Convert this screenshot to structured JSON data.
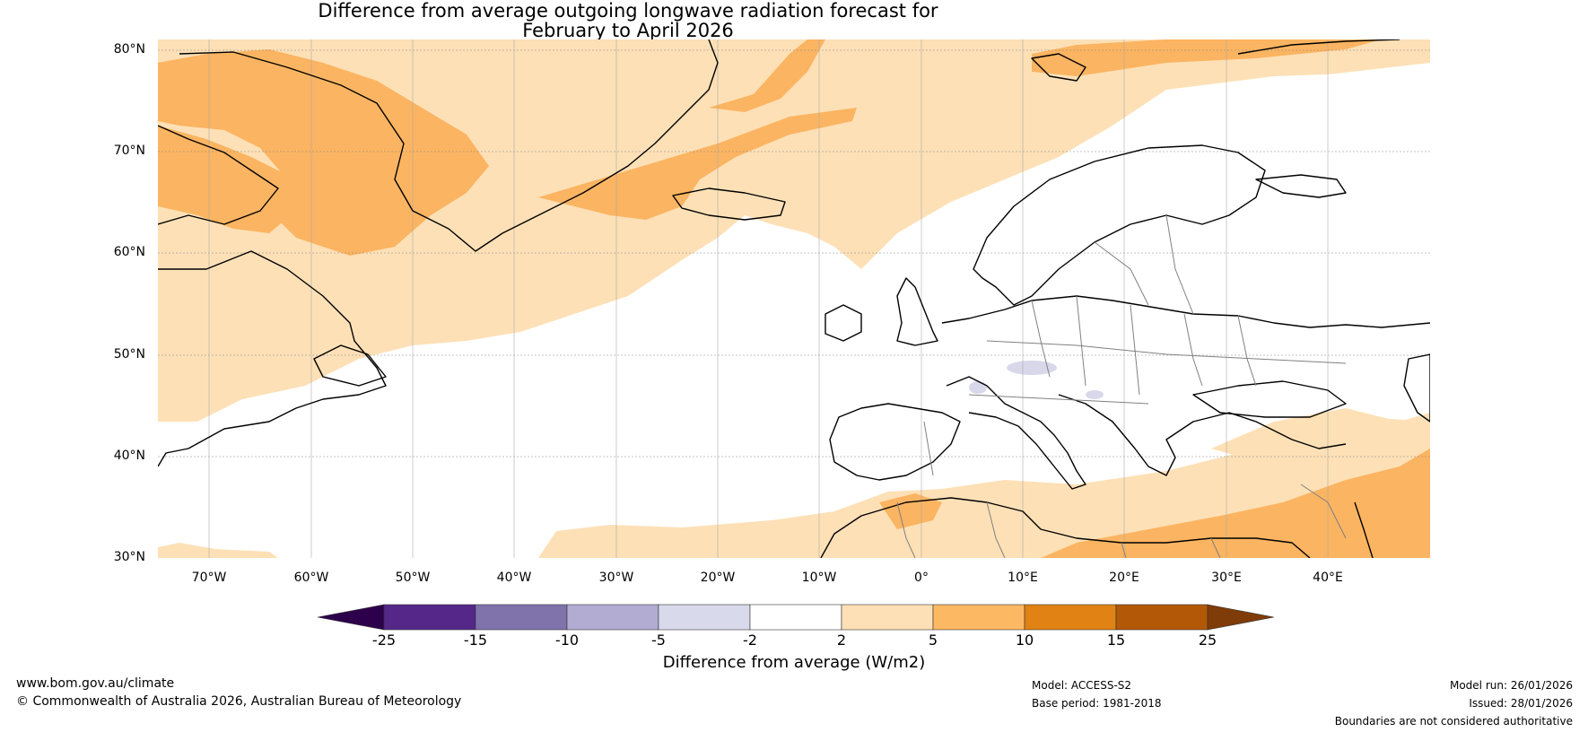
{
  "title": {
    "line1": "Difference from average outgoing longwave radiation forecast for",
    "line2": "February to April 2026"
  },
  "map_data": {
    "extent": {
      "lon": [
        -75,
        50
      ],
      "lat": [
        30,
        82
      ]
    },
    "lat_labels": [
      "80°N",
      "70°N",
      "60°N",
      "50°N",
      "40°N",
      "30°N"
    ],
    "lon_labels": [
      "70°W",
      "60°W",
      "50°W",
      "40°W",
      "30°W",
      "20°W",
      "10°W",
      "0°",
      "10°E",
      "20°E",
      "30°E",
      "40°E"
    ],
    "fill_colors": {
      "light_orange": "#fde0b6",
      "orange": "#fbb461",
      "dark_orange": "#f7a050",
      "light_purple": "#d8d8ea",
      "coast": "#000000",
      "border": "#808080"
    }
  },
  "colorbar": {
    "ticks": [
      "-25",
      "-15",
      "-10",
      "-5",
      "-2",
      "2",
      "5",
      "10",
      "15",
      "25"
    ],
    "colors": [
      "#2d004b",
      "#542788",
      "#8073ac",
      "#b2abd2",
      "#d8daeb",
      "#ffffff",
      "#fee0b6",
      "#fdb863",
      "#e08214",
      "#b35806",
      "#7f3b08"
    ],
    "label": "Difference from average (W/m2)"
  },
  "footer": {
    "website": "www.bom.gov.au/climate",
    "copyright": "© Commonwealth of Australia 2026, Australian Bureau of Meteorology",
    "model": "Model: ACCESS-S2",
    "base_period": "Base period: 1981-2018",
    "model_run": "Model run: 26/01/2026",
    "issued": "Issued: 28/01/2026",
    "disclaimer": "Boundaries are not considered authoritative"
  }
}
